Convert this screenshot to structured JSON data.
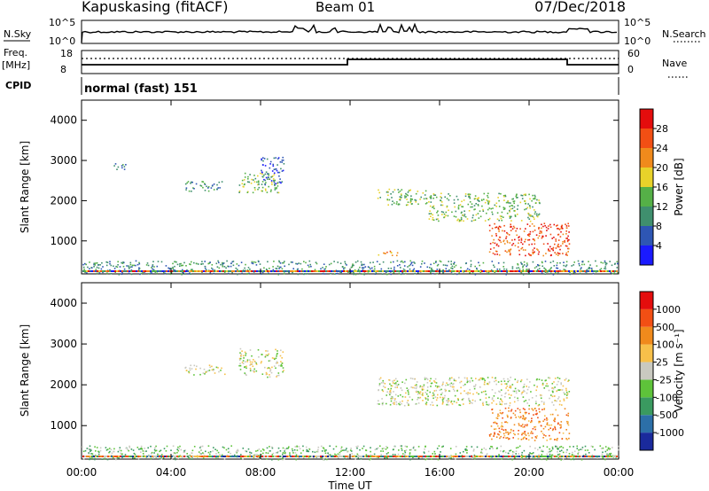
{
  "header": {
    "station": "Kapuskasing (fitACF)",
    "beam": "Beam 01",
    "date": "07/Dec/2018"
  },
  "noise_panel": {
    "left_label": "N.Sky",
    "right_label": "N.Search",
    "ticks": [
      "10^5",
      "10^0"
    ]
  },
  "freq_panel": {
    "label_line1": "Freq.",
    "label_line2": "[MHz]",
    "left_ticks": [
      "18",
      "8"
    ],
    "right_ticks": [
      "60",
      "0"
    ],
    "right_label": "Nave"
  },
  "cpid_panel": {
    "label": "CPID",
    "mode_text": "normal (fast) 151"
  },
  "time_axis": {
    "label": "Time UT",
    "ticks": [
      "00:00",
      "04:00",
      "08:00",
      "12:00",
      "16:00",
      "20:00",
      "00:00"
    ]
  },
  "chart_data": [
    {
      "type": "heatmap",
      "title": "",
      "ylabel": "Slant Range [km]",
      "xlabel": "Time UT",
      "xlim_hours": [
        0,
        24
      ],
      "ylim_km": [
        180,
        4500
      ],
      "y_ticks": [
        1000,
        2000,
        3000,
        4000
      ],
      "colorbar": {
        "label": "Power [dB]",
        "ticks": [
          "4",
          "8",
          "12",
          "16",
          "20",
          "24",
          "28"
        ],
        "colors": [
          "#1a1aff",
          "#2e56b4",
          "#3f8f6e",
          "#55b047",
          "#e8d22a",
          "#f08a1c",
          "#f24f14",
          "#e40d0d"
        ]
      },
      "echo_regions": [
        {
          "t0": 1.4,
          "t1": 2.0,
          "r0": 2750,
          "r1": 2950,
          "level": 2
        },
        {
          "t0": 4.6,
          "t1": 6.4,
          "r0": 2250,
          "r1": 2500,
          "level": 2
        },
        {
          "t0": 7.0,
          "t1": 8.8,
          "r0": 2200,
          "r1": 2700,
          "level": 3
        },
        {
          "t0": 8.0,
          "t1": 9.1,
          "r0": 2400,
          "r1": 3100,
          "level": 1
        },
        {
          "t0": 13.2,
          "t1": 15.5,
          "r0": 1900,
          "r1": 2300,
          "level": 3
        },
        {
          "t0": 15.5,
          "t1": 20.5,
          "r0": 1500,
          "r1": 2200,
          "level": 3
        },
        {
          "t0": 18.2,
          "t1": 21.8,
          "r0": 650,
          "r1": 1450,
          "level": 6
        },
        {
          "t0": 13.0,
          "t1": 14.2,
          "r0": 650,
          "r1": 760,
          "level": 5
        },
        {
          "t0": 0.0,
          "t1": 24.0,
          "r0": 180,
          "r1": 520,
          "level": 2
        }
      ]
    },
    {
      "type": "heatmap",
      "title": "",
      "ylabel": "Slant Range [km]",
      "xlabel": "Time UT",
      "xlim_hours": [
        0,
        24
      ],
      "ylim_km": [
        180,
        4500
      ],
      "y_ticks": [
        1000,
        2000,
        3000,
        4000
      ],
      "colorbar": {
        "label": "Velocity [m s⁻¹]",
        "ticks": [
          "1000",
          "500",
          "100",
          "25",
          "-25",
          "-100",
          "-500",
          "-1000"
        ],
        "colors": [
          "#1a2a9c",
          "#2c6fa8",
          "#3a9a60",
          "#5ec33a",
          "#c9c9c0",
          "#f7c04a",
          "#f08a1c",
          "#f24f14",
          "#e40d0d"
        ]
      },
      "echo_regions": [
        {
          "t0": 4.6,
          "t1": 6.4,
          "r0": 2250,
          "r1": 2500,
          "level": 4
        },
        {
          "t0": 7.0,
          "t1": 9.0,
          "r0": 2200,
          "r1": 2900,
          "level": 4
        },
        {
          "t0": 13.2,
          "t1": 21.8,
          "r0": 1500,
          "r1": 2200,
          "level": 4
        },
        {
          "t0": 18.2,
          "t1": 21.8,
          "r0": 650,
          "r1": 1450,
          "level": 6
        },
        {
          "t0": 0.0,
          "t1": 24.0,
          "r0": 180,
          "r1": 520,
          "level": 3
        }
      ]
    }
  ]
}
